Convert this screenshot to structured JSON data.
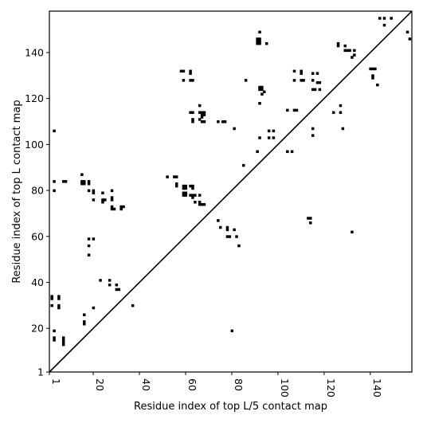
{
  "chart_data": {
    "type": "heatmap",
    "title": "",
    "xlabel": "Residue index of top L/5 contact map",
    "ylabel": "Residue index of top L contact map",
    "xlim": [
      1,
      158
    ],
    "ylim": [
      1,
      158
    ],
    "x_ticks": [
      1,
      20,
      40,
      60,
      80,
      100,
      120,
      140
    ],
    "y_ticks": [
      1,
      20,
      40,
      60,
      80,
      100,
      120,
      140
    ],
    "diagonal": true,
    "grid": false,
    "colors": {
      "contact": "#000000",
      "background": "#ffffff"
    },
    "contacts": [
      [
        2,
        34
      ],
      [
        2,
        33
      ],
      [
        2,
        30
      ],
      [
        3,
        106
      ],
      [
        3,
        84
      ],
      [
        3,
        80
      ],
      [
        3,
        19
      ],
      [
        3,
        16
      ],
      [
        3,
        15
      ],
      [
        5,
        34
      ],
      [
        5,
        33
      ],
      [
        5,
        30
      ],
      [
        5,
        29
      ],
      [
        7,
        84
      ],
      [
        8,
        84
      ],
      [
        7,
        16
      ],
      [
        7,
        15
      ],
      [
        7,
        14
      ],
      [
        7,
        13
      ],
      [
        15,
        87
      ],
      [
        15,
        84
      ],
      [
        15,
        83
      ],
      [
        16,
        84
      ],
      [
        16,
        83
      ],
      [
        16,
        26
      ],
      [
        16,
        23
      ],
      [
        16,
        22
      ],
      [
        18,
        84
      ],
      [
        18,
        83
      ],
      [
        18,
        80
      ],
      [
        18,
        59
      ],
      [
        18,
        56
      ],
      [
        18,
        52
      ],
      [
        20,
        80
      ],
      [
        20,
        79
      ],
      [
        20,
        76
      ],
      [
        20,
        59
      ],
      [
        20,
        29
      ],
      [
        23,
        41
      ],
      [
        24,
        79
      ],
      [
        24,
        76
      ],
      [
        24,
        75
      ],
      [
        25,
        76
      ],
      [
        27,
        41
      ],
      [
        27,
        39
      ],
      [
        28,
        80
      ],
      [
        28,
        77
      ],
      [
        28,
        76
      ],
      [
        28,
        73
      ],
      [
        28,
        72
      ],
      [
        29,
        72
      ],
      [
        30,
        39
      ],
      [
        30,
        37
      ],
      [
        31,
        37
      ],
      [
        32,
        73
      ],
      [
        32,
        72
      ],
      [
        33,
        73
      ],
      [
        37,
        30
      ],
      [
        52,
        86
      ],
      [
        55,
        86
      ],
      [
        56,
        86
      ],
      [
        56,
        83
      ],
      [
        56,
        82
      ],
      [
        58,
        132
      ],
      [
        59,
        132
      ],
      [
        59,
        128
      ],
      [
        59,
        82
      ],
      [
        59,
        81
      ],
      [
        59,
        79
      ],
      [
        59,
        78
      ],
      [
        60,
        82
      ],
      [
        60,
        81
      ],
      [
        60,
        79
      ],
      [
        60,
        78
      ],
      [
        62,
        132
      ],
      [
        62,
        131
      ],
      [
        62,
        128
      ],
      [
        62,
        114
      ],
      [
        63,
        128
      ],
      [
        63,
        114
      ],
      [
        63,
        111
      ],
      [
        63,
        110
      ],
      [
        62,
        82
      ],
      [
        63,
        82
      ],
      [
        63,
        81
      ],
      [
        62,
        78
      ],
      [
        63,
        78
      ],
      [
        63,
        77
      ],
      [
        64,
        78
      ],
      [
        64,
        75
      ],
      [
        66,
        117
      ],
      [
        66,
        114
      ],
      [
        66,
        111
      ],
      [
        66,
        78
      ],
      [
        66,
        75
      ],
      [
        66,
        74
      ],
      [
        67,
        114
      ],
      [
        67,
        113
      ],
      [
        67,
        112
      ],
      [
        67,
        110
      ],
      [
        68,
        114
      ],
      [
        68,
        113
      ],
      [
        68,
        110
      ],
      [
        67,
        74
      ],
      [
        68,
        74
      ],
      [
        74,
        110
      ],
      [
        74,
        67
      ],
      [
        75,
        64
      ],
      [
        76,
        110
      ],
      [
        77,
        110
      ],
      [
        78,
        64
      ],
      [
        78,
        63
      ],
      [
        78,
        60
      ],
      [
        79,
        60
      ],
      [
        80,
        19
      ],
      [
        81,
        107
      ],
      [
        81,
        63
      ],
      [
        82,
        60
      ],
      [
        83,
        56
      ],
      [
        85,
        91
      ],
      [
        86,
        128
      ],
      [
        91,
        146
      ],
      [
        91,
        145
      ],
      [
        91,
        144
      ],
      [
        92,
        149
      ],
      [
        92,
        146
      ],
      [
        92,
        145
      ],
      [
        92,
        144
      ],
      [
        91,
        97
      ],
      [
        92,
        125
      ],
      [
        93,
        125
      ],
      [
        92,
        124
      ],
      [
        93,
        124
      ],
      [
        93,
        122
      ],
      [
        92,
        118
      ],
      [
        92,
        103
      ],
      [
        94,
        123
      ],
      [
        95,
        144
      ],
      [
        96,
        106
      ],
      [
        96,
        103
      ],
      [
        98,
        106
      ],
      [
        98,
        103
      ],
      [
        104,
        115
      ],
      [
        104,
        97
      ],
      [
        106,
        97
      ],
      [
        107,
        132
      ],
      [
        107,
        128
      ],
      [
        107,
        115
      ],
      [
        108,
        115
      ],
      [
        110,
        132
      ],
      [
        110,
        131
      ],
      [
        110,
        128
      ],
      [
        111,
        128
      ],
      [
        113,
        68
      ],
      [
        114,
        68
      ],
      [
        114,
        66
      ],
      [
        115,
        131
      ],
      [
        115,
        128
      ],
      [
        115,
        124
      ],
      [
        115,
        107
      ],
      [
        115,
        104
      ],
      [
        116,
        124
      ],
      [
        117,
        131
      ],
      [
        117,
        127
      ],
      [
        118,
        127
      ],
      [
        118,
        124
      ],
      [
        124,
        114
      ],
      [
        126,
        144
      ],
      [
        126,
        143
      ],
      [
        127,
        117
      ],
      [
        127,
        114
      ],
      [
        128,
        107
      ],
      [
        129,
        143
      ],
      [
        129,
        141
      ],
      [
        130,
        141
      ],
      [
        131,
        141
      ],
      [
        132,
        138
      ],
      [
        133,
        141
      ],
      [
        133,
        139
      ],
      [
        132,
        62
      ],
      [
        140,
        133
      ],
      [
        141,
        133
      ],
      [
        142,
        133
      ],
      [
        141,
        130
      ],
      [
        141,
        129
      ],
      [
        143,
        126
      ],
      [
        144,
        155
      ],
      [
        146,
        155
      ],
      [
        146,
        152
      ],
      [
        149,
        155
      ],
      [
        156,
        149
      ],
      [
        157,
        146
      ]
    ]
  }
}
